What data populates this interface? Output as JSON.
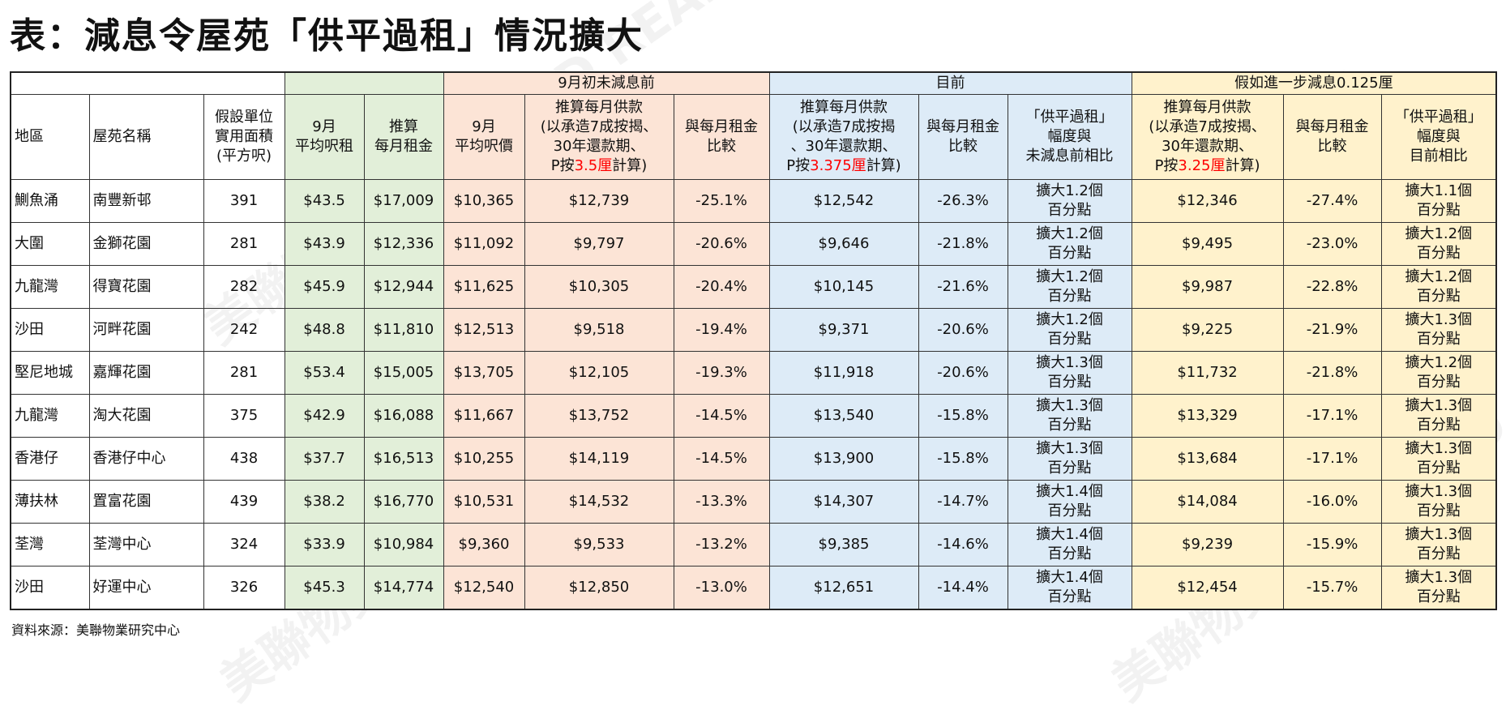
{
  "title": "表：減息令屋苑「供平過租」情況擴大",
  "groups": {
    "before": "9月初未減息前",
    "current": "目前",
    "further": "假如進一步減息0.125厘"
  },
  "headers": {
    "district": "地區",
    "estate": "屋苑名稱",
    "area": [
      "假設單位",
      "實用面積",
      "(平方呎)"
    ],
    "rent_psf": [
      "9月",
      "平均呎租"
    ],
    "monthly_rent": [
      "推算",
      "每月租金"
    ],
    "price_psf": [
      "9月",
      "平均呎價"
    ],
    "mortgage_before": {
      "lines": [
        "推算每月供款",
        "(以承造7成按揭、",
        "30年還款期、"
      ],
      "pre": "P按",
      "rate": "3.5厘",
      "post": "計算)"
    },
    "compare_before": [
      "與每月租金",
      "比較"
    ],
    "mortgage_current": {
      "lines": [
        "推算每月供款",
        "(以承造7成按揭",
        "、30年還款期、"
      ],
      "pre": "P按",
      "rate": "3.375厘",
      "post": "計算)"
    },
    "compare_current": [
      "與每月租金",
      "比較"
    ],
    "gap_current": [
      "「供平過租」",
      "幅度與",
      "未減息前相比"
    ],
    "mortgage_further": {
      "lines": [
        "推算每月供款",
        "(以承造7成按揭、",
        "30年還款期、"
      ],
      "pre": "P按",
      "rate": "3.25厘",
      "post": "計算)"
    },
    "compare_further": [
      "與每月租金",
      "比較"
    ],
    "gap_further": [
      "「供平過租」",
      "幅度與",
      "目前相比"
    ]
  },
  "rows": [
    [
      "鰂魚涌",
      "南豐新邨",
      "391",
      "$43.5",
      "$17,009",
      "$10,365",
      "$12,739",
      "-25.1%",
      "$12,542",
      "-26.3%",
      [
        "擴大1.2個",
        "百分點"
      ],
      "$12,346",
      "-27.4%",
      [
        "擴大1.1個",
        "百分點"
      ]
    ],
    [
      "大圍",
      "金獅花園",
      "281",
      "$43.9",
      "$12,336",
      "$11,092",
      "$9,797",
      "-20.6%",
      "$9,646",
      "-21.8%",
      [
        "擴大1.2個",
        "百分點"
      ],
      "$9,495",
      "-23.0%",
      [
        "擴大1.2個",
        "百分點"
      ]
    ],
    [
      "九龍灣",
      "得寶花園",
      "282",
      "$45.9",
      "$12,944",
      "$11,625",
      "$10,305",
      "-20.4%",
      "$10,145",
      "-21.6%",
      [
        "擴大1.2個",
        "百分點"
      ],
      "$9,987",
      "-22.8%",
      [
        "擴大1.2個",
        "百分點"
      ]
    ],
    [
      "沙田",
      "河畔花園",
      "242",
      "$48.8",
      "$11,810",
      "$12,513",
      "$9,518",
      "-19.4%",
      "$9,371",
      "-20.6%",
      [
        "擴大1.2個",
        "百分點"
      ],
      "$9,225",
      "-21.9%",
      [
        "擴大1.3個",
        "百分點"
      ]
    ],
    [
      "堅尼地城",
      "嘉輝花園",
      "281",
      "$53.4",
      "$15,005",
      "$13,705",
      "$12,105",
      "-19.3%",
      "$11,918",
      "-20.6%",
      [
        "擴大1.3個",
        "百分點"
      ],
      "$11,732",
      "-21.8%",
      [
        "擴大1.2個",
        "百分點"
      ]
    ],
    [
      "九龍灣",
      "淘大花園",
      "375",
      "$42.9",
      "$16,088",
      "$11,667",
      "$13,752",
      "-14.5%",
      "$13,540",
      "-15.8%",
      [
        "擴大1.3個",
        "百分點"
      ],
      "$13,329",
      "-17.1%",
      [
        "擴大1.3個",
        "百分點"
      ]
    ],
    [
      "香港仔",
      "香港仔中心",
      "438",
      "$37.7",
      "$16,513",
      "$10,255",
      "$14,119",
      "-14.5%",
      "$13,900",
      "-15.8%",
      [
        "擴大1.3個",
        "百分點"
      ],
      "$13,684",
      "-17.1%",
      [
        "擴大1.3個",
        "百分點"
      ]
    ],
    [
      "薄扶林",
      "置富花園",
      "439",
      "$38.2",
      "$16,770",
      "$10,531",
      "$14,532",
      "-13.3%",
      "$14,307",
      "-14.7%",
      [
        "擴大1.4個",
        "百分點"
      ],
      "$14,084",
      "-16.0%",
      [
        "擴大1.3個",
        "百分點"
      ]
    ],
    [
      "荃灣",
      "荃灣中心",
      "324",
      "$33.9",
      "$10,984",
      "$9,360",
      "$9,533",
      "-13.2%",
      "$9,385",
      "-14.6%",
      [
        "擴大1.4個",
        "百分點"
      ],
      "$9,239",
      "-15.9%",
      [
        "擴大1.3個",
        "百分點"
      ]
    ],
    [
      "沙田",
      "好運中心",
      "326",
      "$45.3",
      "$14,774",
      "$12,540",
      "$12,850",
      "-13.0%",
      "$12,651",
      "-14.4%",
      [
        "擴大1.4個",
        "百分點"
      ],
      "$12,454",
      "-15.7%",
      [
        "擴大1.3個",
        "百分點"
      ]
    ]
  ],
  "source": "資料來源：美聯物業研究中心",
  "watermark": "美聯物業 MIDLAND REALTY",
  "colors": {
    "green": "#e2efd9",
    "peach": "#fce4d6",
    "blue": "#ddebf7",
    "yellow": "#fff2cc",
    "highlight": "#ff0000"
  }
}
